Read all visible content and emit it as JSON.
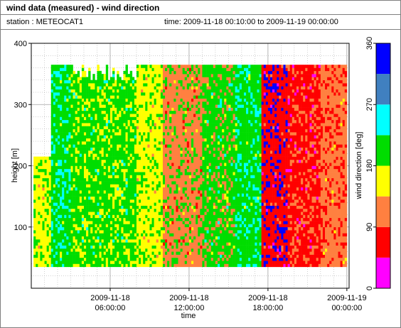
{
  "header": {
    "title": "wind data (measured) - wind direction",
    "station_label": "station : METEOCAT1",
    "time_label": "time: 2009-11-18 00:10:00 to 2009-11-19 00:00:00"
  },
  "chart_data": {
    "type": "heatmap",
    "title": "wind data (measured) - wind direction",
    "xlabel": "time",
    "ylabel": "height [m]",
    "colorbar_label": "wind direction [deg]",
    "xlim": [
      "2009-11-18 00:10:00",
      "2009-11-19 00:00:00"
    ],
    "ylim": [
      0,
      400
    ],
    "x_ticks": [
      {
        "line1": "2009-11-18",
        "line2": "06:00:00",
        "hour": 6
      },
      {
        "line1": "2009-11-18",
        "line2": "12:00:00",
        "hour": 12
      },
      {
        "line1": "2009-11-18",
        "line2": "18:00:00",
        "hour": 18
      },
      {
        "line1": "2009-11-19",
        "line2": "00:00:00",
        "hour": 24
      }
    ],
    "y_ticks": [
      100,
      200,
      300,
      400
    ],
    "data_height_range": [
      35,
      365
    ],
    "grid": true,
    "colorbar": {
      "range": [
        0,
        360
      ],
      "ticks": [
        0,
        90,
        180,
        270,
        360
      ],
      "bins": [
        {
          "from": 0,
          "to": 45,
          "color": "#ff00ff"
        },
        {
          "from": 45,
          "to": 90,
          "color": "#ff0000"
        },
        {
          "from": 90,
          "to": 135,
          "color": "#ff8040"
        },
        {
          "from": 135,
          "to": 180,
          "color": "#ffff00"
        },
        {
          "from": 180,
          "to": 225,
          "color": "#00dd00"
        },
        {
          "from": 225,
          "to": 270,
          "color": "#00ffff"
        },
        {
          "from": 270,
          "to": 315,
          "color": "#4080c0"
        },
        {
          "from": 315,
          "to": 360,
          "color": "#0000ff"
        }
      ]
    },
    "time_segments": [
      {
        "hours": [
          0.17,
          1.5
        ],
        "dominant_deg": 160,
        "secondary_deg": 200
      },
      {
        "hours": [
          1.5,
          3.0
        ],
        "dominant_deg": 200,
        "secondary_deg": 250
      },
      {
        "hours": [
          3.0,
          5.0
        ],
        "dominant_deg": 205,
        "secondary_deg": 160
      },
      {
        "hours": [
          5.0,
          8.0
        ],
        "dominant_deg": 200,
        "secondary_deg": 160
      },
      {
        "hours": [
          8.0,
          10.0
        ],
        "dominant_deg": 160,
        "secondary_deg": 200
      },
      {
        "hours": [
          10.0,
          13.0
        ],
        "dominant_deg": 110,
        "secondary_deg": 200
      },
      {
        "hours": [
          13.0,
          15.5
        ],
        "dominant_deg": 200,
        "secondary_deg": 110
      },
      {
        "hours": [
          15.5,
          17.5
        ],
        "dominant_deg": 200,
        "secondary_deg": 250
      },
      {
        "hours": [
          17.5,
          19.5
        ],
        "dominant_deg": 70,
        "secondary_deg": 320
      },
      {
        "hours": [
          19.5,
          22.0
        ],
        "dominant_deg": 65,
        "secondary_deg": 110
      },
      {
        "hours": [
          22.0,
          24.0
        ],
        "dominant_deg": 110,
        "secondary_deg": 65
      }
    ]
  }
}
